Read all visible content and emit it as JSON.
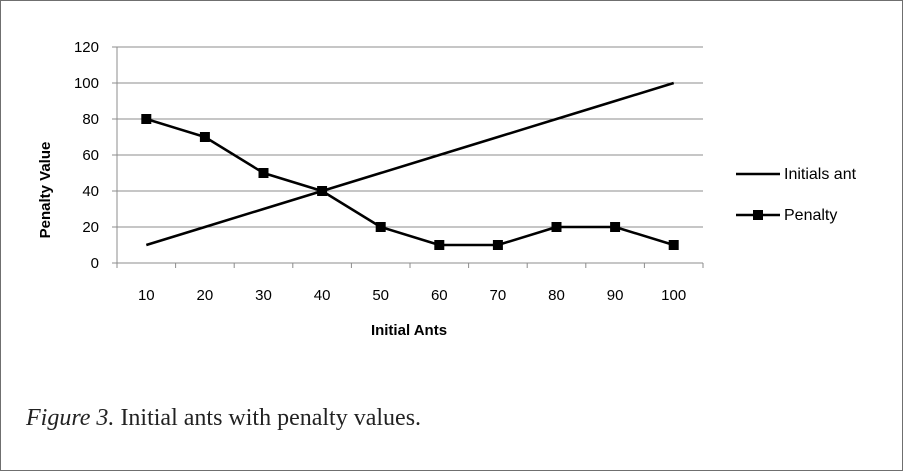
{
  "chart_data": {
    "type": "line",
    "title": "",
    "xlabel": "Initial Ants",
    "ylabel": "Penalty Value",
    "categories": [
      "10",
      "20",
      "30",
      "40",
      "50",
      "60",
      "70",
      "80",
      "90",
      "100"
    ],
    "ylim": [
      0,
      120
    ],
    "yticks": [
      "0",
      "20",
      "40",
      "60",
      "80",
      "100",
      "120"
    ],
    "grid": true,
    "legend_position": "right",
    "series": [
      {
        "name": "Initials ant",
        "values": [
          10,
          20,
          30,
          40,
          50,
          60,
          70,
          80,
          90,
          100
        ],
        "marker": "none",
        "color": "#000000"
      },
      {
        "name": "Penalty",
        "values": [
          80,
          70,
          50,
          40,
          20,
          10,
          10,
          20,
          20,
          10
        ],
        "marker": "square",
        "color": "#000000"
      }
    ]
  },
  "caption": {
    "label": "Figure 3.",
    "text": " Initial ants with penalty values."
  }
}
